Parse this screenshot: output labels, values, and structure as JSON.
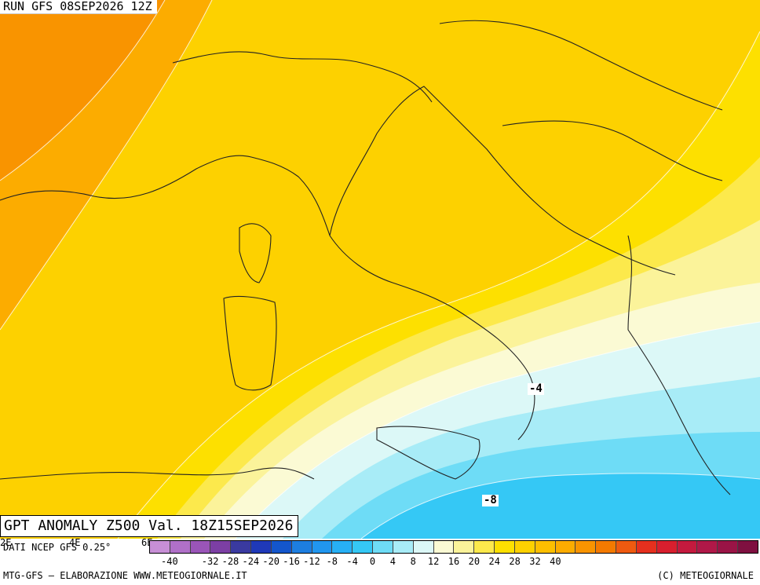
{
  "header": {
    "run": "RUN GFS 08SEP2026 12Z",
    "product": "GPT ANOMALY Z500 Val. 18Z15SEP2026"
  },
  "source": "DATI NCEP GFS 0.25°",
  "axis_labels": [
    "2E",
    "4E",
    "6E"
  ],
  "contour_labels": [
    "-4",
    "-8"
  ],
  "footer": {
    "left": "MTG-GFS — ELABORAZIONE WWW.METEOGIORNALE.IT",
    "right": "(C) METEOGIORNALE"
  },
  "legend": {
    "ticks": [
      "-40",
      "-32",
      "-28",
      "-24",
      "-20",
      "-16",
      "-12",
      "-8",
      "-4",
      "0",
      "4",
      "8",
      "12",
      "16",
      "20",
      "24",
      "28",
      "32",
      "40"
    ],
    "colors": [
      "#c78fd6",
      "#b070c8",
      "#9a55b8",
      "#7c3fa4",
      "#3a3aa0",
      "#1f39b8",
      "#1456cc",
      "#1d7ee0",
      "#2196ef",
      "#27b0f5",
      "#35c8f5",
      "#6edcf6",
      "#a8ecf7",
      "#dcf8f7",
      "#fbfad4",
      "#fbf39a",
      "#fce94c",
      "#fde000",
      "#fdd100",
      "#fdbf00",
      "#fcac00",
      "#f99400",
      "#f47a00",
      "#ef5a10",
      "#e5301e",
      "#d81f2e",
      "#c41a3e",
      "#b01848",
      "#9a1446",
      "#7f1040"
    ]
  }
}
